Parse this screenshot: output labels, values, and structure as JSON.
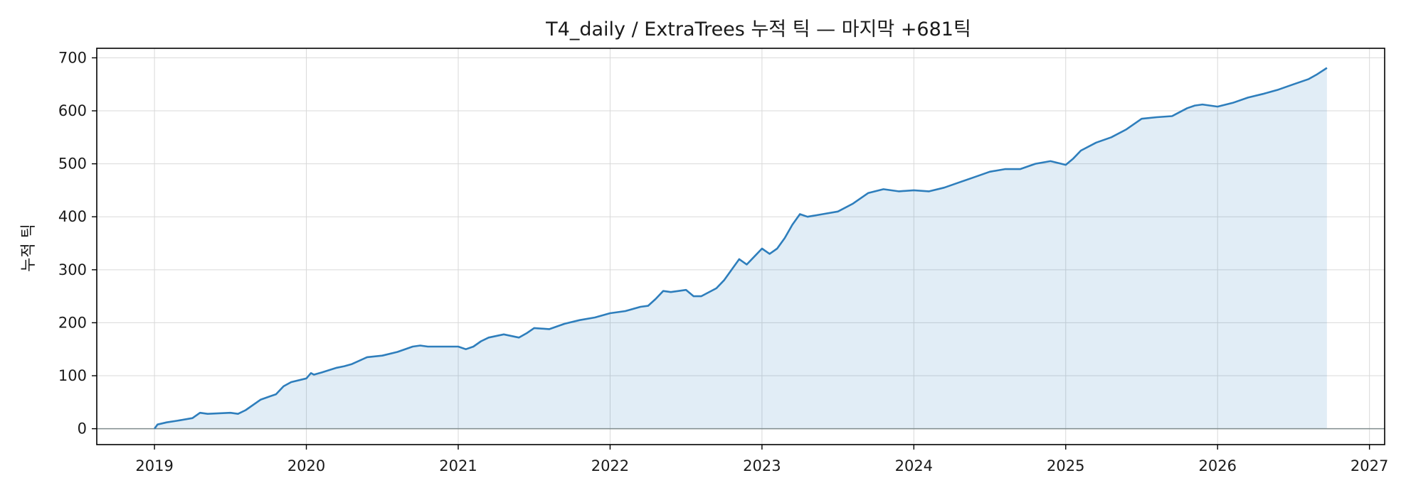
{
  "chart_data": {
    "type": "area",
    "title": "T4_daily / ExtraTrees 누적 틱 — 마지막 +681틱",
    "xlabel": "",
    "ylabel": "누적 틱",
    "xlim": [
      2018.62,
      2027.1
    ],
    "ylim": [
      -30,
      718
    ],
    "x_ticks": [
      2019,
      2020,
      2021,
      2022,
      2023,
      2024,
      2025,
      2026,
      2027
    ],
    "x_tick_labels": [
      "2019",
      "2020",
      "2021",
      "2022",
      "2023",
      "2024",
      "2025",
      "2026",
      "2027"
    ],
    "y_ticks": [
      0,
      100,
      200,
      300,
      400,
      500,
      600,
      700
    ],
    "y_tick_labels": [
      "0",
      "100",
      "200",
      "300",
      "400",
      "500",
      "600",
      "700"
    ],
    "grid": true,
    "reference_line_y": 0,
    "series": [
      {
        "x": [
          2019.0,
          2019.02,
          2019.08,
          2019.15,
          2019.25,
          2019.3,
          2019.35,
          2019.5,
          2019.55,
          2019.6,
          2019.7,
          2019.8,
          2019.85,
          2019.9,
          2020.0,
          2020.03,
          2020.05,
          2020.1,
          2020.2,
          2020.25,
          2020.3,
          2020.4,
          2020.5,
          2020.6,
          2020.7,
          2020.75,
          2020.8,
          2020.9,
          2021.0,
          2021.05,
          2021.1,
          2021.15,
          2021.2,
          2021.3,
          2021.4,
          2021.45,
          2021.5,
          2021.6,
          2021.7,
          2021.8,
          2021.9,
          2022.0,
          2022.1,
          2022.2,
          2022.25,
          2022.3,
          2022.35,
          2022.4,
          2022.5,
          2022.55,
          2022.6,
          2022.7,
          2022.75,
          2022.8,
          2022.85,
          2022.9,
          2022.95,
          2023.0,
          2023.05,
          2023.1,
          2023.15,
          2023.2,
          2023.25,
          2023.3,
          2023.4,
          2023.5,
          2023.6,
          2023.7,
          2023.8,
          2023.9,
          2024.0,
          2024.1,
          2024.2,
          2024.3,
          2024.4,
          2024.5,
          2024.6,
          2024.7,
          2024.8,
          2024.9,
          2025.0,
          2025.05,
          2025.1,
          2025.2,
          2025.3,
          2025.4,
          2025.5,
          2025.6,
          2025.7,
          2025.8,
          2025.85,
          2025.9,
          2026.0,
          2026.1,
          2026.2,
          2026.3,
          2026.4,
          2026.5,
          2026.6,
          2026.65,
          2026.72
        ],
        "y": [
          0,
          8,
          12,
          15,
          20,
          30,
          28,
          30,
          28,
          35,
          55,
          65,
          80,
          88,
          95,
          105,
          102,
          106,
          115,
          118,
          122,
          135,
          138,
          145,
          155,
          157,
          155,
          155,
          155,
          150,
          155,
          165,
          172,
          178,
          172,
          180,
          190,
          188,
          198,
          205,
          210,
          218,
          222,
          230,
          232,
          245,
          260,
          258,
          262,
          250,
          250,
          265,
          280,
          300,
          320,
          310,
          325,
          340,
          330,
          340,
          360,
          385,
          405,
          400,
          405,
          410,
          425,
          445,
          452,
          448,
          450,
          448,
          455,
          465,
          475,
          485,
          490,
          490,
          500,
          505,
          498,
          510,
          525,
          540,
          550,
          565,
          585,
          588,
          590,
          605,
          610,
          612,
          608,
          615,
          625,
          632,
          640,
          650,
          660,
          668,
          681
        ],
        "color": "#2e7ebc"
      }
    ]
  }
}
